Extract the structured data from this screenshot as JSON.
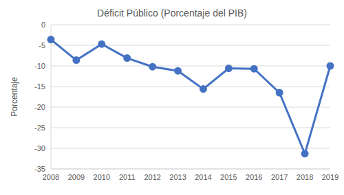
{
  "chart_data": {
    "type": "line",
    "title": "Déficit Público (Porcentaje del PIB)",
    "y_label": "Porcentaje",
    "categories": [
      "2008",
      "2009",
      "2010",
      "2011",
      "2012",
      "2013",
      "2014",
      "2015",
      "2016",
      "2017",
      "2018",
      "2019"
    ],
    "values": [
      -3.6,
      -8.6,
      -4.7,
      -8.1,
      -10.2,
      -11.2,
      -15.6,
      -10.6,
      -10.7,
      -16.5,
      -31.3,
      -10.0
    ],
    "color": "#4472c4",
    "marker": "circle",
    "ylim": [
      -35,
      0
    ],
    "yticks": [
      -35,
      -30,
      -25,
      -20,
      -15,
      -10,
      -5,
      0
    ],
    "grid": true
  }
}
